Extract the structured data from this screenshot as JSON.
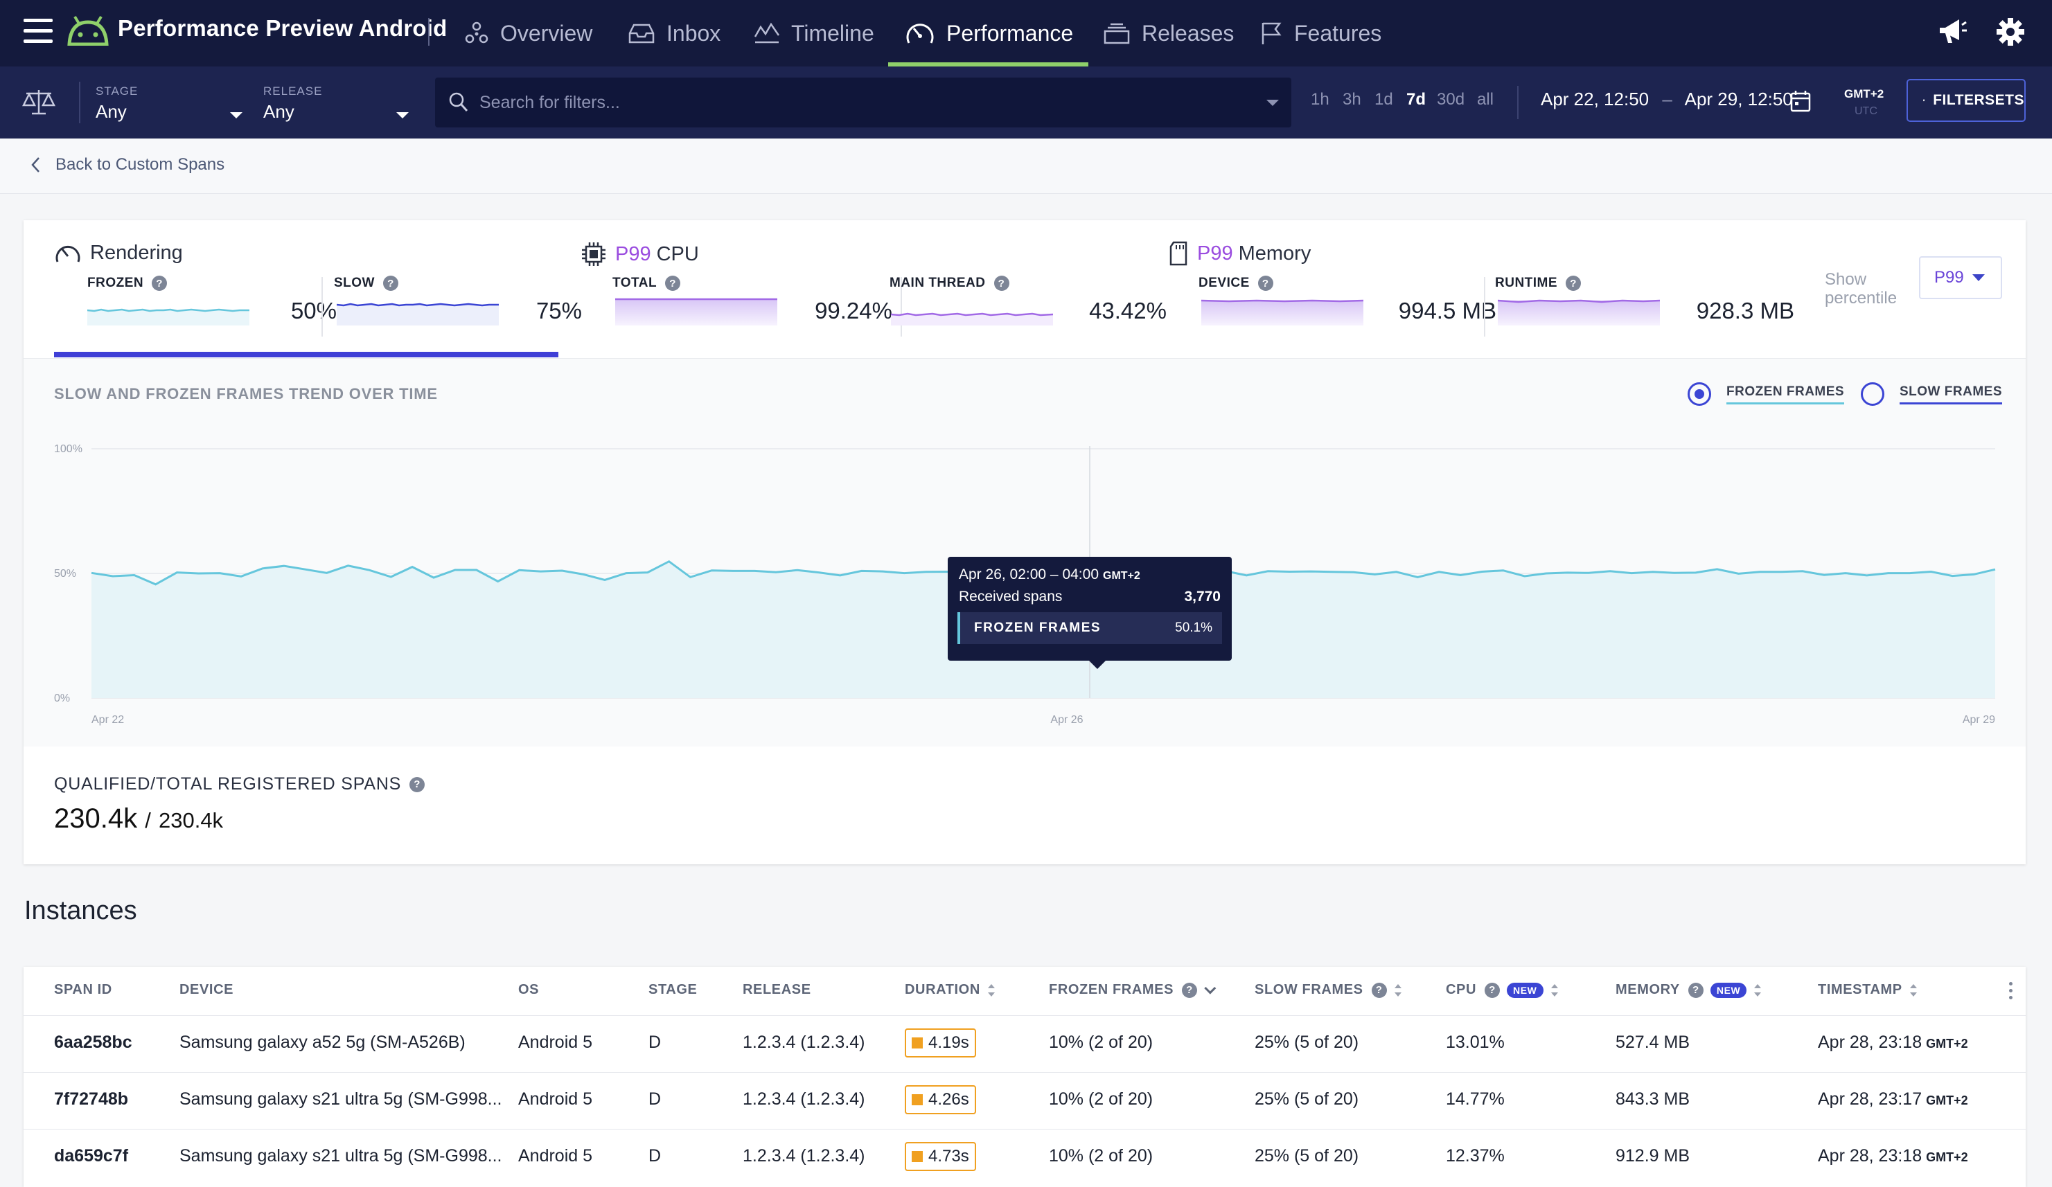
{
  "app": {
    "title": "Performance Preview Android"
  },
  "nav": {
    "items": [
      {
        "label": "Overview",
        "icon": "overview-icon"
      },
      {
        "label": "Inbox",
        "icon": "inbox-icon"
      },
      {
        "label": "Timeline",
        "icon": "timeline-icon"
      },
      {
        "label": "Performance",
        "icon": "gauge-icon",
        "active": true
      },
      {
        "label": "Releases",
        "icon": "releases-icon"
      },
      {
        "label": "Features",
        "icon": "flag-icon"
      }
    ]
  },
  "filters": {
    "stage_label": "STAGE",
    "stage_value": "Any",
    "release_label": "RELEASE",
    "release_value": "Any",
    "search_placeholder": "Search for filters...",
    "ranges": [
      "1h",
      "3h",
      "1d",
      "7d",
      "30d",
      "all"
    ],
    "active_range": "7d",
    "date_from": "Apr 22, 12:50",
    "date_sep": "–",
    "date_to": "Apr 29, 12:50",
    "tz_local": "GMT+2",
    "tz_utc": "UTC",
    "filtersets_label": "FILTERSETS"
  },
  "breadcrumb": {
    "back_label": "Back to Custom Spans"
  },
  "metrics": {
    "rendering": {
      "title": "Rendering",
      "frozen_label": "FROZEN",
      "frozen_value": "50%",
      "slow_label": "SLOW",
      "slow_value": "75%"
    },
    "cpu": {
      "pct": "P99",
      "title": "CPU",
      "total_label": "TOTAL",
      "total_value": "99.24%",
      "main_label": "MAIN THREAD",
      "main_value": "43.42%"
    },
    "memory": {
      "pct": "P99",
      "title": "Memory",
      "device_label": "DEVICE",
      "device_value": "994.5 MB",
      "runtime_label": "RUNTIME",
      "runtime_value": "928.3 MB"
    },
    "percentile_label_1": "Show",
    "percentile_label_2": "percentile",
    "percentile_value": "P99"
  },
  "chart": {
    "title": "SLOW AND FROZEN FRAMES TREND OVER TIME",
    "legend_frozen": "FROZEN FRAMES",
    "legend_slow": "SLOW FRAMES",
    "tooltip": {
      "time": "Apr 26, 02:00 – 04:00",
      "tz": "GMT+2",
      "spans_label": "Received spans",
      "spans_value": "3,770",
      "series_label": "FROZEN FRAMES",
      "series_value": "50.1%"
    }
  },
  "chart_data": {
    "type": "area",
    "ylim": [
      0,
      100
    ],
    "yticks": [
      "100%",
      "50%",
      "0%"
    ],
    "xticks": [
      "Apr 22",
      "Apr 26",
      "Apr 29"
    ],
    "series": [
      {
        "name": "FROZEN FRAMES",
        "color": "#65c6dc",
        "values": [
          50.2,
          48.9,
          49.3,
          45.6,
          50.4,
          50.0,
          50.1,
          48.8,
          52.0,
          53.0,
          51.6,
          50.2,
          53.1,
          51.3,
          48.6,
          52.6,
          48.3,
          51.4,
          51.4,
          46.8,
          51.3,
          50.8,
          51.1,
          49.6,
          47.4,
          50.1,
          50.4,
          54.8,
          48.5,
          51.2,
          51.0,
          51.0,
          50.5,
          51.3,
          50.4,
          49.2,
          51.0,
          50.8,
          50.1,
          50.6,
          50.7,
          50.1,
          50.2,
          48.2,
          50.1,
          49.4,
          50.8,
          50.2,
          49.8,
          49.6,
          49.6,
          50.2,
          51.1,
          51.0,
          49.2,
          50.9,
          50.7,
          50.8,
          50.6,
          50.5,
          49.6,
          50.6,
          48.5,
          50.6,
          49.3,
          50.7,
          51.2,
          48.9,
          50.0,
          50.3,
          50.2,
          50.9,
          50.1,
          50.6,
          50.2,
          50.3,
          51.7,
          49.9,
          50.6,
          50.6,
          50.9,
          49.4,
          50.1,
          49.2,
          50.1,
          50.1,
          50.7,
          49.0,
          49.6,
          51.6
        ]
      }
    ],
    "highlight": {
      "x": "Apr 26",
      "value": 50.1
    }
  },
  "spans": {
    "label": "QUALIFIED/TOTAL REGISTERED SPANS",
    "qualified": "230.4k",
    "sep": "/",
    "total": "230.4k"
  },
  "instances": {
    "title": "Instances",
    "columns": {
      "span_id": "SPAN ID",
      "device": "DEVICE",
      "os": "OS",
      "stage": "STAGE",
      "release": "RELEASE",
      "duration": "DURATION",
      "frozen": "FROZEN FRAMES",
      "slow": "SLOW FRAMES",
      "cpu": "CPU",
      "memory": "MEMORY",
      "timestamp": "TIMESTAMP",
      "new_badge": "NEW"
    },
    "rows": [
      {
        "id": "6aa258bc",
        "device": "Samsung galaxy a52 5g (SM-A526B)",
        "os": "Android 5",
        "stage": "D",
        "release": "1.2.3.4 (1.2.3.4)",
        "duration": "4.19s",
        "frozen": "10% (2 of 20)",
        "slow": "25% (5 of 20)",
        "cpu": "13.01%",
        "memory": "527.4 MB",
        "timestamp": "Apr 28, 23:18",
        "tz": "GMT+2"
      },
      {
        "id": "7f72748b",
        "device": "Samsung galaxy s21 ultra 5g (SM-G998...",
        "os": "Android 5",
        "stage": "D",
        "release": "1.2.3.4 (1.2.3.4)",
        "duration": "4.26s",
        "frozen": "10% (2 of 20)",
        "slow": "25% (5 of 20)",
        "cpu": "14.77%",
        "memory": "843.3 MB",
        "timestamp": "Apr 28, 23:17",
        "tz": "GMT+2"
      },
      {
        "id": "da659c7f",
        "device": "Samsung galaxy s21 ultra 5g (SM-G998...",
        "os": "Android 5",
        "stage": "D",
        "release": "1.2.3.4 (1.2.3.4)",
        "duration": "4.73s",
        "frozen": "10% (2 of 20)",
        "slow": "25% (5 of 20)",
        "cpu": "12.37%",
        "memory": "912.9 MB",
        "timestamp": "Apr 28, 23:18",
        "tz": "GMT+2"
      }
    ]
  }
}
